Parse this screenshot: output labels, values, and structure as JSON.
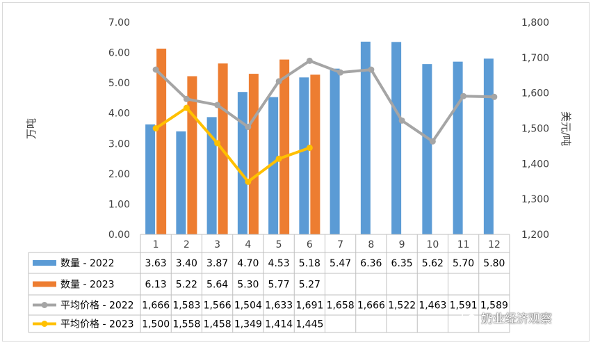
{
  "chart_data": {
    "type": "bar",
    "categories": [
      "1",
      "2",
      "3",
      "4",
      "5",
      "6",
      "7",
      "8",
      "9",
      "10",
      "11",
      "12"
    ],
    "y_left": {
      "label": "万吨",
      "ylim": [
        0,
        7
      ],
      "ticks": [
        "0.00",
        "1.00",
        "2.00",
        "3.00",
        "4.00",
        "5.00",
        "6.00",
        "7.00"
      ]
    },
    "y_right": {
      "label": "美元/吨",
      "ylim": [
        1200,
        1800
      ],
      "ticks": [
        "1,200",
        "1,300",
        "1,400",
        "1,500",
        "1,600",
        "1,700",
        "1,800"
      ]
    },
    "bar_series": [
      {
        "name": "数量 - 2022",
        "color": "#5b9bd5",
        "values": [
          3.63,
          3.4,
          3.87,
          4.7,
          4.53,
          5.18,
          5.47,
          6.36,
          6.35,
          5.62,
          5.7,
          5.8
        ]
      },
      {
        "name": "数量 - 2023",
        "color": "#ed7d31",
        "values": [
          6.13,
          5.22,
          5.64,
          5.3,
          5.77,
          5.27,
          null,
          null,
          null,
          null,
          null,
          null
        ]
      }
    ],
    "line_series": [
      {
        "name": "平均价格 - 2022",
        "color": "#a5a5a5",
        "axis": "right",
        "values": [
          1666,
          1583,
          1566,
          1504,
          1633,
          1691,
          1658,
          1666,
          1522,
          1463,
          1591,
          1589
        ]
      },
      {
        "name": "平均价格 - 2023",
        "color": "#ffc000",
        "axis": "right",
        "values": [
          1500,
          1558,
          1458,
          1349,
          1414,
          1445,
          null,
          null,
          null,
          null,
          null,
          null
        ]
      }
    ],
    "table_rows": [
      [
        "3.63",
        "3.40",
        "3.87",
        "4.70",
        "4.53",
        "5.18",
        "5.47",
        "6.36",
        "6.35",
        "5.62",
        "5.70",
        "5.80"
      ],
      [
        "6.13",
        "5.22",
        "5.64",
        "5.30",
        "5.77",
        "5.27",
        "",
        "",
        "",
        "",
        "",
        ""
      ],
      [
        "1,666",
        "1,583",
        "1,566",
        "1,504",
        "1,633",
        "1,691",
        "1,658",
        "1,666",
        "1,522",
        "1,463",
        "1,591",
        "1,589"
      ],
      [
        "1,500",
        "1,558",
        "1,458",
        "1,349",
        "1,414",
        "1,445",
        "",
        "",
        "",
        "",
        "",
        ""
      ]
    ],
    "legend_placement": "data-table",
    "grid": false
  },
  "watermark": {
    "text": "奶业经济观察",
    "icon": "wechat-icon"
  }
}
